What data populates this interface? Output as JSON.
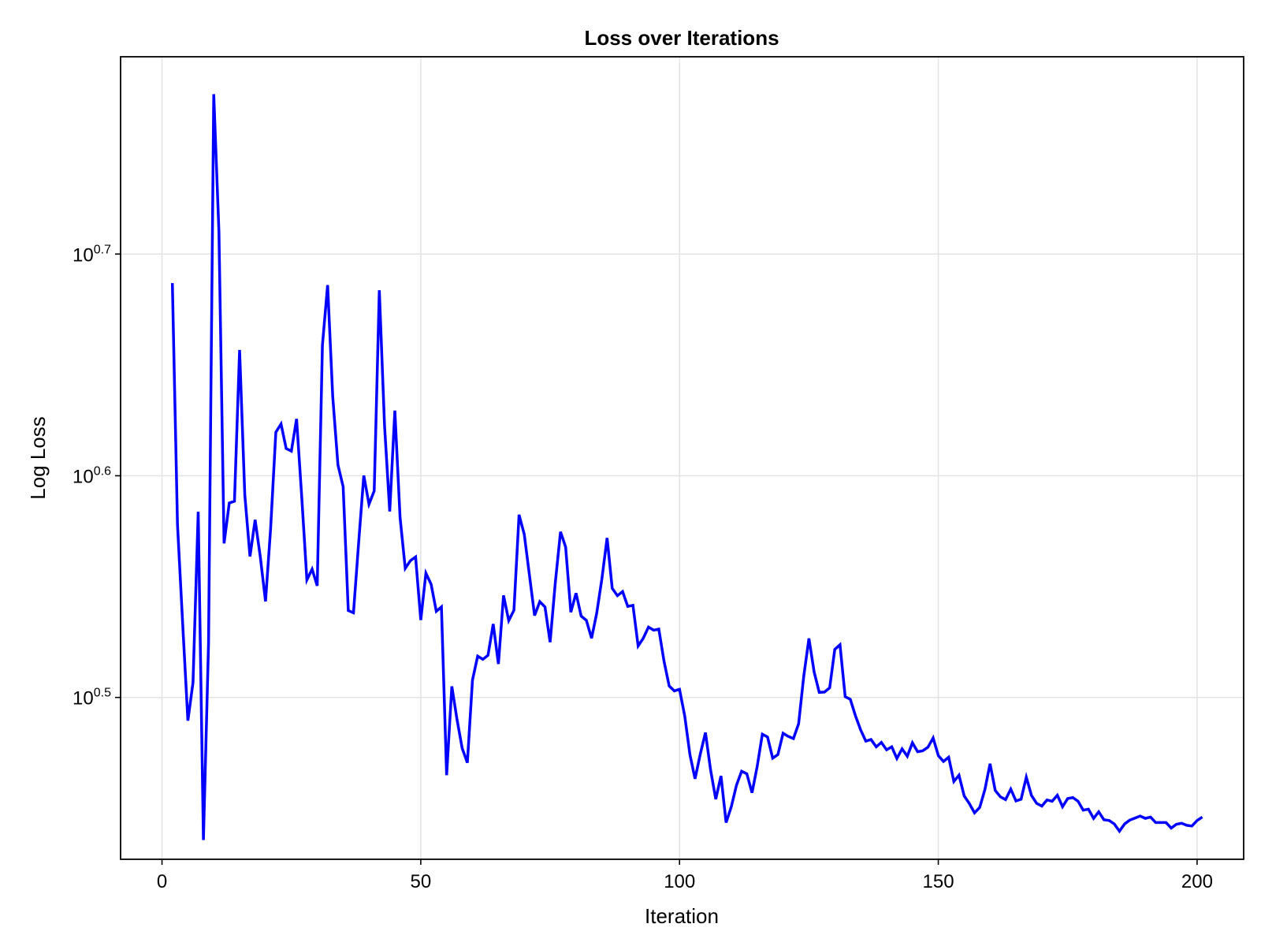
{
  "chart_data": {
    "type": "line",
    "title": "Loss over Iterations",
    "xlabel": "Iteration",
    "ylabel": "Log Loss",
    "y_scale": "log10",
    "xlim": [
      -8,
      209
    ],
    "ylim_exponent": [
      0.427,
      0.789
    ],
    "grid": true,
    "x_ticks": [
      {
        "value": 0,
        "label": "0"
      },
      {
        "value": 50,
        "label": "50"
      },
      {
        "value": 100,
        "label": "100"
      },
      {
        "value": 150,
        "label": "150"
      },
      {
        "value": 200,
        "label": "200"
      }
    ],
    "y_ticks": [
      {
        "exponent": 0.5,
        "base": "10",
        "exp_label": "0.5"
      },
      {
        "exponent": 0.6,
        "base": "10",
        "exp_label": "0.6"
      },
      {
        "exponent": 0.7,
        "base": "10",
        "exp_label": "0.7"
      }
    ],
    "series": [
      {
        "color": "#0000ff",
        "x": [
          2,
          3,
          4,
          5,
          6,
          7,
          8,
          9,
          10,
          11,
          12,
          13,
          14,
          15,
          16,
          17,
          18,
          19,
          20,
          21,
          22,
          23,
          24,
          25,
          26,
          27,
          28,
          29,
          30,
          31,
          32,
          33,
          34,
          35,
          36,
          37,
          38,
          39,
          40,
          41,
          42,
          43,
          44,
          45,
          46,
          47,
          48,
          49,
          50,
          51,
          52,
          53,
          54,
          55,
          56,
          57,
          58,
          59,
          60,
          61,
          62,
          63,
          64,
          65,
          66,
          67,
          68,
          69,
          70,
          71,
          72,
          73,
          74,
          75,
          76,
          77,
          78,
          79,
          80,
          81,
          82,
          83,
          84,
          85,
          86,
          87,
          88,
          89,
          90,
          91,
          92,
          93,
          94,
          95,
          96,
          97,
          98,
          99,
          100,
          101,
          102,
          103,
          104,
          105,
          106,
          107,
          108,
          109,
          110,
          111,
          112,
          113,
          114,
          115,
          116,
          117,
          118,
          119,
          120,
          121,
          122,
          123,
          124,
          125,
          126,
          127,
          128,
          129,
          130,
          131,
          132,
          133,
          134,
          135,
          136,
          137,
          138,
          139,
          140,
          141,
          142,
          143,
          144,
          145,
          146,
          147,
          148,
          149,
          150,
          151,
          152,
          153,
          154,
          155,
          156,
          157,
          158,
          159,
          160,
          161,
          162,
          163,
          164,
          165,
          166,
          167,
          168,
          169,
          170,
          171,
          172,
          173,
          174,
          175,
          176,
          177,
          178,
          179,
          180,
          181,
          182,
          183,
          184,
          185,
          186,
          187,
          188,
          189,
          190,
          191,
          192,
          193,
          194,
          195,
          196,
          197,
          198,
          199,
          200,
          201
        ],
        "y": [
          4.863,
          3.784,
          3.413,
          3.087,
          3.212,
          3.835,
          2.727,
          3.344,
          5.917,
          5.128,
          3.711,
          3.87,
          3.877,
          4.537,
          3.903,
          3.661,
          3.803,
          3.659,
          3.494,
          3.77,
          4.165,
          4.201,
          4.095,
          4.084,
          4.223,
          3.897,
          3.573,
          3.613,
          3.551,
          4.559,
          4.853,
          4.321,
          4.026,
          3.936,
          3.461,
          3.453,
          3.715,
          3.982,
          3.865,
          3.919,
          4.827,
          4.195,
          3.836,
          4.26,
          3.813,
          3.616,
          3.645,
          3.659,
          3.427,
          3.598,
          3.557,
          3.458,
          3.474,
          2.917,
          3.199,
          3.092,
          3.0,
          2.955,
          3.22,
          3.301,
          3.29,
          3.304,
          3.413,
          3.274,
          3.516,
          3.425,
          3.462,
          3.823,
          3.746,
          3.59,
          3.443,
          3.493,
          3.474,
          3.349,
          3.563,
          3.756,
          3.697,
          3.455,
          3.524,
          3.441,
          3.426,
          3.363,
          3.451,
          3.577,
          3.732,
          3.542,
          3.515,
          3.53,
          3.476,
          3.48,
          3.336,
          3.363,
          3.402,
          3.391,
          3.395,
          3.284,
          3.2,
          3.184,
          3.189,
          3.102,
          2.98,
          2.906,
          2.981,
          3.049,
          2.933,
          2.845,
          2.915,
          2.777,
          2.823,
          2.887,
          2.929,
          2.921,
          2.864,
          2.943,
          3.044,
          3.035,
          2.969,
          2.98,
          3.047,
          3.037,
          3.03,
          3.077,
          3.232,
          3.362,
          3.247,
          3.179,
          3.18,
          3.194,
          3.324,
          3.34,
          3.165,
          3.156,
          3.102,
          3.057,
          3.022,
          3.027,
          3.004,
          3.018,
          2.995,
          3.004,
          2.968,
          2.998,
          2.975,
          3.017,
          2.989,
          2.992,
          3.003,
          3.032,
          2.977,
          2.959,
          2.972,
          2.898,
          2.917,
          2.855,
          2.832,
          2.805,
          2.821,
          2.874,
          2.952,
          2.871,
          2.852,
          2.844,
          2.875,
          2.84,
          2.845,
          2.911,
          2.856,
          2.833,
          2.825,
          2.843,
          2.839,
          2.857,
          2.823,
          2.847,
          2.85,
          2.839,
          2.813,
          2.816,
          2.789,
          2.808,
          2.785,
          2.783,
          2.773,
          2.752,
          2.773,
          2.784,
          2.79,
          2.796,
          2.789,
          2.793,
          2.777,
          2.777,
          2.777,
          2.761,
          2.772,
          2.775,
          2.769,
          2.767,
          2.783,
          2.793
        ]
      }
    ]
  }
}
